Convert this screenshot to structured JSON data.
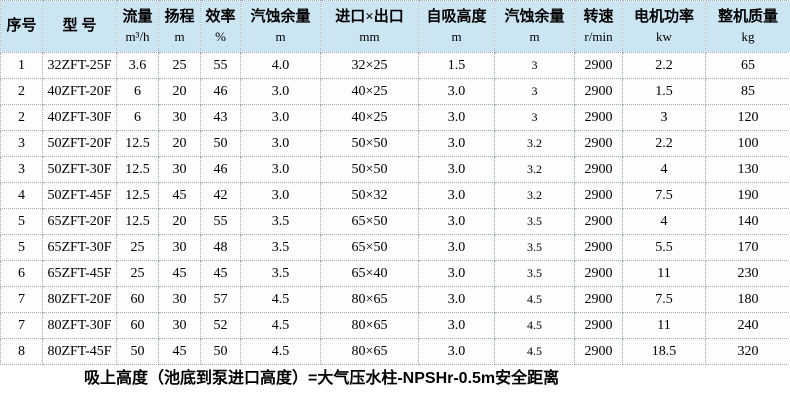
{
  "colors": {
    "header_bg": "#cbe6f2",
    "border": "#9fadb5",
    "text": "#000000"
  },
  "table": {
    "columns": [
      {
        "label": "序号",
        "unit": ""
      },
      {
        "label": "型 号",
        "unit": ""
      },
      {
        "label": "流量",
        "unit": "m³/h"
      },
      {
        "label": "扬程",
        "unit": "m"
      },
      {
        "label": "效率",
        "unit": "%"
      },
      {
        "label": "汽蚀余量",
        "unit": "m"
      },
      {
        "label": "进口×出口",
        "unit": "mm"
      },
      {
        "label": "自吸高度",
        "unit": "m"
      },
      {
        "label": "汽蚀余量",
        "unit": "m"
      },
      {
        "label": "转速",
        "unit": "r/min"
      },
      {
        "label": "电机功率",
        "unit": "kw"
      },
      {
        "label": "整机质量",
        "unit": "kg"
      }
    ],
    "rows": [
      [
        "1",
        "32ZFT-25F",
        "3.6",
        "25",
        "55",
        "4.0",
        "32×25",
        "1.5",
        "3",
        "2900",
        "2.2",
        "65"
      ],
      [
        "2",
        "40ZFT-20F",
        "6",
        "20",
        "46",
        "3.0",
        "40×25",
        "3.0",
        "3",
        "2900",
        "1.5",
        "85"
      ],
      [
        "2",
        "40ZFT-30F",
        "6",
        "30",
        "43",
        "3.0",
        "40×25",
        "3.0",
        "3",
        "2900",
        "3",
        "120"
      ],
      [
        "3",
        "50ZFT-20F",
        "12.5",
        "20",
        "50",
        "3.0",
        "50×50",
        "3.0",
        "3.2",
        "2900",
        "2.2",
        "100"
      ],
      [
        "3",
        "50ZFT-30F",
        "12.5",
        "30",
        "46",
        "3.0",
        "50×50",
        "3.0",
        "3.2",
        "2900",
        "4",
        "130"
      ],
      [
        "4",
        "50ZFT-45F",
        "12.5",
        "45",
        "42",
        "3.0",
        "50×32",
        "3.0",
        "3.2",
        "2900",
        "7.5",
        "190"
      ],
      [
        "5",
        "65ZFT-20F",
        "12.5",
        "20",
        "55",
        "3.5",
        "65×50",
        "3.0",
        "3.5",
        "2900",
        "4",
        "140"
      ],
      [
        "5",
        "65ZFT-30F",
        "25",
        "30",
        "48",
        "3.5",
        "65×50",
        "3.0",
        "3.5",
        "2900",
        "5.5",
        "170"
      ],
      [
        "6",
        "65ZFT-45F",
        "25",
        "45",
        "45",
        "3.5",
        "65×40",
        "3.0",
        "3.5",
        "2900",
        "11",
        "230"
      ],
      [
        "7",
        "80ZFT-20F",
        "60",
        "30",
        "57",
        "4.5",
        "80×65",
        "3.0",
        "4.5",
        "2900",
        "7.5",
        "180"
      ],
      [
        "7",
        "80ZFT-30F",
        "60",
        "30",
        "52",
        "4.5",
        "80×65",
        "3.0",
        "4.5",
        "2900",
        "11",
        "240"
      ],
      [
        "8",
        "80ZFT-45F",
        "50",
        "45",
        "50",
        "4.5",
        "80×65",
        "3.0",
        "4.5",
        "2900",
        "18.5",
        "320"
      ]
    ]
  },
  "footer": {
    "note": "吸上高度（池底到泵进口高度）=大气压水柱-NPSHr-0.5m安全距离"
  }
}
